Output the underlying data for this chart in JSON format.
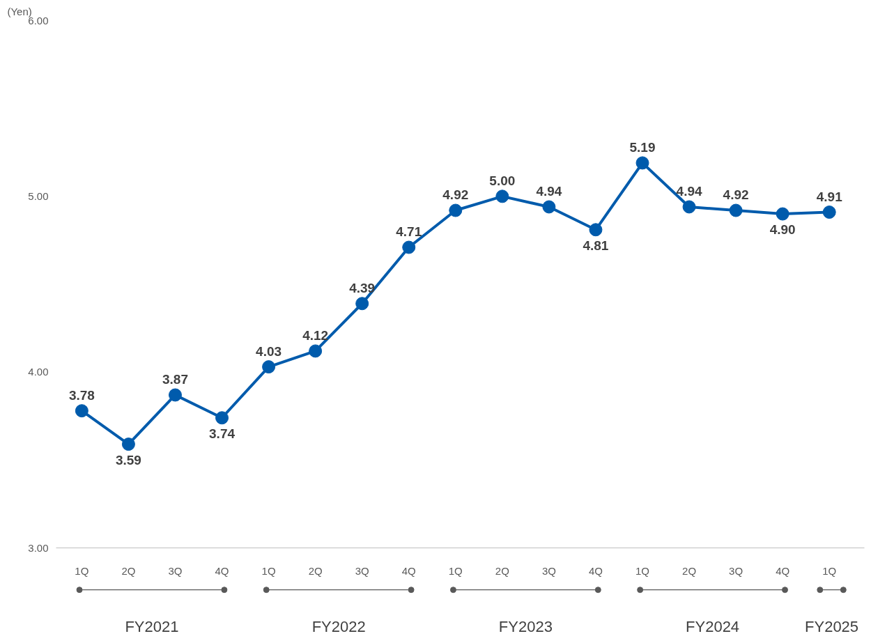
{
  "chart_data": {
    "type": "line",
    "ylabel": "(Yen)",
    "categories": [
      "1Q",
      "2Q",
      "3Q",
      "4Q",
      "1Q",
      "2Q",
      "3Q",
      "4Q",
      "1Q",
      "2Q",
      "3Q",
      "4Q",
      "1Q",
      "2Q",
      "3Q",
      "4Q",
      "1Q"
    ],
    "series": [
      {
        "color": "#005bac",
        "values": [
          3.78,
          3.59,
          3.87,
          3.74,
          4.03,
          4.12,
          4.39,
          4.71,
          4.92,
          5.0,
          4.94,
          4.81,
          5.19,
          4.94,
          4.92,
          4.9,
          4.91
        ]
      }
    ],
    "ylim": [
      3,
      6
    ],
    "yticks": [
      {
        "value": 3,
        "label": "3.00"
      },
      {
        "value": 4,
        "label": "4.00"
      },
      {
        "value": 5,
        "label": "5.00"
      },
      {
        "value": 6,
        "label": "6.00"
      }
    ],
    "annotations": [
      "FY2021",
      "FY2022",
      "FY2023",
      "FY2024",
      "FY2025"
    ],
    "value_labels": [
      "3.78",
      "3.59",
      "3.87",
      "3.74",
      "4.03",
      "4.12",
      "4.39",
      "4.71",
      "4.92",
      "5.00",
      "4.94",
      "4.81",
      "5.19",
      "4.94",
      "4.92",
      "4.90",
      "4.91"
    ],
    "marker": "circle",
    "line_style": "solid",
    "grid": false
  }
}
